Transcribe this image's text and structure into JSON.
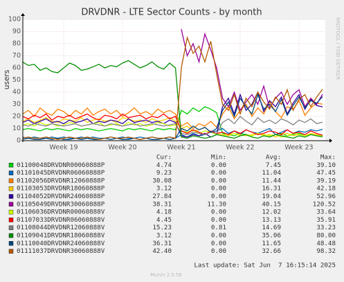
{
  "chart_data": {
    "type": "line",
    "title": "DRVDNR - LTE Sector Counts - by month",
    "y_label": "users",
    "watermark": "RRDTOOL / TOBI OETIKER",
    "last_update": "Last update: Sat Jun  7 16:15:14 2025",
    "footer": "Munin 2.0.56",
    "legend_headers": [
      "Cur:",
      "Min:",
      "Avg:",
      "Max:"
    ],
    "ylim": [
      0,
      100
    ],
    "yticks": [
      0,
      10,
      20,
      30,
      40,
      50,
      60,
      70,
      80,
      90,
      100
    ],
    "grid": true,
    "categories": [
      null,
      null,
      null,
      null,
      null,
      null,
      null,
      "Week 19",
      null,
      null,
      null,
      null,
      null,
      null,
      null,
      null,
      null,
      "Week 20",
      null,
      null,
      null,
      null,
      null,
      null,
      null,
      null,
      null,
      "Week 21",
      null,
      null,
      null,
      null,
      null,
      null,
      null,
      null,
      null,
      "Week 22",
      null,
      null,
      null,
      null,
      null,
      null,
      null,
      null,
      null,
      "Week 23",
      null,
      null,
      null,
      null
    ],
    "series": [
      {
        "name": "01100048DRVDNR00060888P",
        "color": "#00cc00",
        "stats": [
          "4.74",
          "0.00",
          "7.45",
          "39.10"
        ],
        "values": [
          9,
          10,
          9,
          8,
          10,
          9,
          10,
          9,
          8,
          10,
          9,
          10,
          9,
          8,
          9,
          10,
          9,
          8,
          10,
          9,
          10,
          9,
          8,
          10,
          9,
          10,
          9,
          25,
          22,
          27,
          24,
          28,
          26,
          23,
          6,
          5,
          4,
          6,
          5,
          4,
          6,
          5,
          4,
          5,
          6,
          4,
          5,
          6,
          4,
          5,
          4,
          4.74
        ]
      },
      {
        "name": "01101045DRVDNR06060888P",
        "color": "#0066b3",
        "stats": [
          "9.23",
          "0.00",
          "11.04",
          "47.45"
        ],
        "values": [
          3,
          2,
          3,
          2,
          2,
          3,
          2,
          3,
          2,
          2,
          3,
          2,
          3,
          2,
          2,
          3,
          2,
          3,
          2,
          2,
          3,
          2,
          3,
          2,
          2,
          3,
          2,
          5,
          3,
          6,
          4,
          5,
          7,
          8,
          10,
          6,
          8,
          5,
          9,
          7,
          6,
          8,
          10,
          5,
          7,
          9,
          6,
          8,
          7,
          9,
          8,
          9.23
        ]
      },
      {
        "name": "01102056DRVDNR12060888P",
        "color": "#ff8000",
        "stats": [
          "30.08",
          "0.00",
          "11.44",
          "39.19"
        ],
        "values": [
          22,
          25,
          20,
          27,
          23,
          21,
          26,
          24,
          20,
          25,
          22,
          27,
          21,
          24,
          26,
          22,
          25,
          20,
          23,
          27,
          22,
          24,
          21,
          26,
          23,
          25,
          22,
          12,
          15,
          10,
          14,
          12,
          16,
          11,
          22,
          28,
          18,
          25,
          30,
          20,
          27,
          22,
          32,
          24,
          19,
          28,
          26,
          33,
          21,
          27,
          31,
          30.08
        ]
      },
      {
        "name": "01103053DRVDNR18060888P",
        "color": "#ffcc00",
        "stats": [
          "3.12",
          "0.00",
          "16.31",
          "42.18"
        ],
        "values": [
          16,
          18,
          15,
          17,
          19,
          16,
          15,
          18,
          17,
          16,
          19,
          15,
          17,
          18,
          16,
          17,
          15,
          19,
          18,
          16,
          17,
          15,
          18,
          16,
          17,
          19,
          16,
          10,
          12,
          8,
          9,
          11,
          7,
          6,
          5,
          4,
          6,
          5,
          4,
          5,
          6,
          4,
          5,
          3,
          5,
          6,
          4,
          5,
          4,
          6,
          5,
          3.12
        ]
      },
      {
        "name": "01104052DRVDNR24060888P",
        "color": "#330099",
        "stats": [
          "27.84",
          "0.00",
          "19.04",
          "52.96"
        ],
        "values": [
          15,
          17,
          14,
          16,
          18,
          15,
          16,
          14,
          17,
          15,
          16,
          18,
          14,
          16,
          15,
          17,
          16,
          14,
          18,
          15,
          16,
          17,
          15,
          16,
          14,
          17,
          15,
          4,
          3,
          5,
          4,
          6,
          3,
          5,
          28,
          35,
          22,
          38,
          25,
          30,
          40,
          24,
          33,
          28,
          36,
          22,
          31,
          38,
          26,
          34,
          29,
          27.84
        ]
      },
      {
        "name": "01105049DRVDNR30060888P",
        "color": "#990099",
        "stats": [
          "38.31",
          "11.30",
          "40.15",
          "120.52"
        ],
        "values": [
          null,
          null,
          null,
          null,
          null,
          null,
          null,
          null,
          null,
          null,
          null,
          null,
          null,
          null,
          null,
          null,
          null,
          null,
          null,
          null,
          null,
          null,
          null,
          null,
          null,
          null,
          null,
          92,
          70,
          80,
          65,
          88,
          75,
          60,
          35,
          28,
          40,
          25,
          32,
          38,
          30,
          45,
          27,
          35,
          40,
          30,
          38,
          42,
          28,
          35,
          30,
          38.31
        ]
      },
      {
        "name": "01106036DRVDNR00060888V",
        "color": "#ccff00",
        "stats": [
          "4.18",
          "0.00",
          "12.02",
          "33.64"
        ],
        "values": [
          13,
          14,
          12,
          15,
          13,
          14,
          12,
          13,
          15,
          14,
          12,
          13,
          14,
          15,
          12,
          13,
          14,
          12,
          15,
          13,
          14,
          12,
          13,
          15,
          14,
          12,
          13,
          8,
          7,
          9,
          6,
          8,
          7,
          5,
          4,
          5,
          6,
          4,
          5,
          4,
          6,
          5,
          4,
          5,
          3,
          4,
          6,
          5,
          4,
          5,
          4,
          4.18
        ]
      },
      {
        "name": "01107033DRVDNR06060888V",
        "color": "#ff0000",
        "stats": [
          "4.45",
          "0.00",
          "13.13",
          "35.91"
        ],
        "values": [
          20,
          18,
          21,
          19,
          22,
          17,
          20,
          19,
          21,
          18,
          20,
          22,
          19,
          17,
          21,
          20,
          18,
          22,
          19,
          20,
          21,
          18,
          20,
          19,
          22,
          18,
          20,
          8,
          6,
          9,
          7,
          5,
          8,
          6,
          7,
          5,
          8,
          6,
          9,
          7,
          5,
          6,
          8,
          7,
          5,
          9,
          6,
          7,
          5,
          8,
          6,
          4.45
        ]
      },
      {
        "name": "01108044DRVDNR12060888V",
        "color": "#808080",
        "stats": [
          "15.23",
          "0.81",
          "14.69",
          "33.23"
        ],
        "values": [
          13,
          12,
          14,
          13,
          12,
          14,
          13,
          12,
          13,
          14,
          12,
          13,
          14,
          13,
          12,
          14,
          13,
          12,
          13,
          14,
          12,
          13,
          14,
          13,
          12,
          13,
          14,
          6,
          5,
          7,
          6,
          5,
          7,
          6,
          15,
          18,
          14,
          20,
          16,
          13,
          19,
          15,
          17,
          14,
          18,
          16,
          13,
          17,
          15,
          18,
          14,
          15.23
        ]
      },
      {
        "name": "01109041DRVDNR18060888V",
        "color": "#008f00",
        "stats": [
          "3.12",
          "0.00",
          "35.06",
          "80.00"
        ],
        "values": [
          65,
          62,
          63,
          58,
          60,
          57,
          56,
          60,
          64,
          62,
          58,
          59,
          61,
          63,
          60,
          62,
          61,
          64,
          66,
          63,
          60,
          62,
          65,
          61,
          59,
          64,
          60,
          3,
          2,
          4,
          3,
          2,
          3,
          5,
          4,
          3,
          2,
          4,
          5,
          3,
          2,
          4,
          3,
          5,
          4,
          3,
          2,
          4,
          3,
          5,
          4,
          3.12
        ]
      },
      {
        "name": "01110040DRVDNR24060888V",
        "color": "#00487d",
        "stats": [
          "36.31",
          "0.00",
          "11.65",
          "48.48"
        ],
        "values": [
          1,
          2,
          1,
          1,
          2,
          1,
          2,
          1,
          1,
          2,
          1,
          2,
          1,
          1,
          2,
          1,
          2,
          1,
          1,
          2,
          1,
          2,
          1,
          1,
          2,
          1,
          2,
          10,
          8,
          12,
          9,
          11,
          7,
          10,
          25,
          32,
          20,
          35,
          28,
          22,
          38,
          26,
          30,
          24,
          34,
          21,
          29,
          36,
          27,
          33,
          31,
          36.31
        ]
      },
      {
        "name": "01111037DRVDNR30060888V",
        "color": "#b35a00",
        "stats": [
          "42.40",
          "0.00",
          "32.66",
          "98.32"
        ],
        "values": [
          2,
          3,
          2,
          2,
          3,
          2,
          1,
          2,
          3,
          2,
          2,
          3,
          2,
          1,
          2,
          3,
          2,
          2,
          3,
          2,
          1,
          2,
          3,
          2,
          2,
          3,
          2,
          60,
          85,
          72,
          78,
          65,
          82,
          55,
          30,
          25,
          38,
          22,
          35,
          28,
          40,
          32,
          26,
          36,
          30,
          42,
          25,
          34,
          38,
          28,
          36,
          42.4
        ]
      }
    ]
  }
}
